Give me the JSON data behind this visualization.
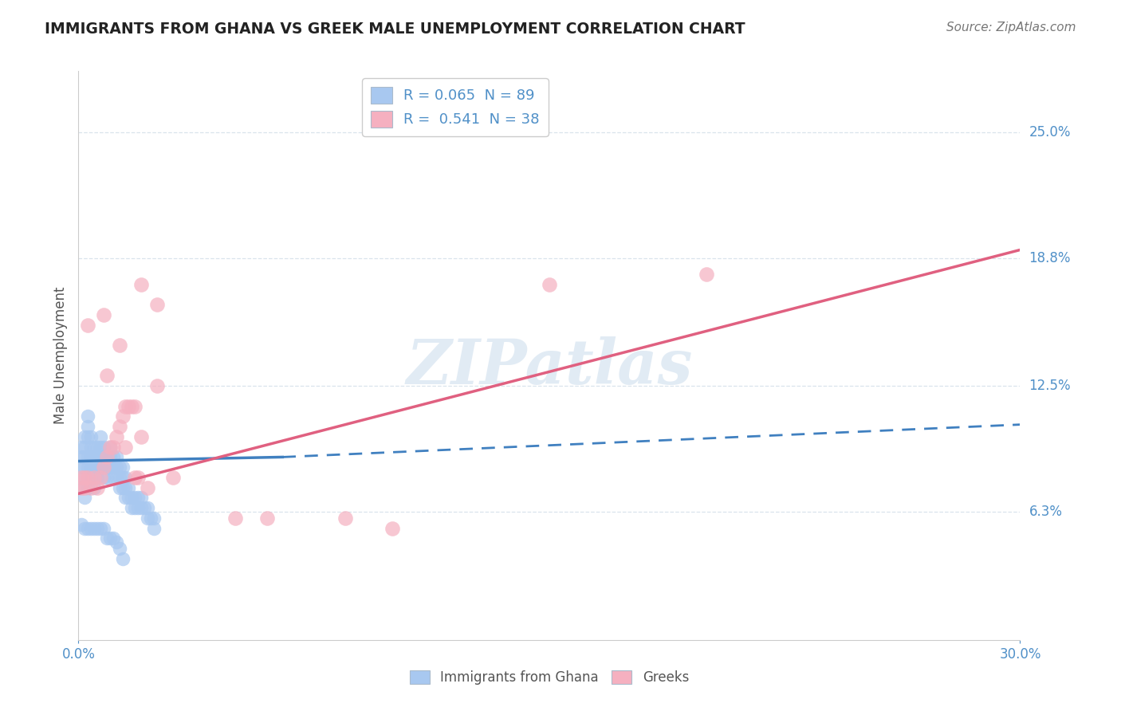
{
  "title": "IMMIGRANTS FROM GHANA VS GREEK MALE UNEMPLOYMENT CORRELATION CHART",
  "source": "Source: ZipAtlas.com",
  "ylabel": "Male Unemployment",
  "watermark": "ZIPatlas",
  "xlim": [
    0.0,
    0.3
  ],
  "ylim": [
    0.0,
    0.28
  ],
  "y_tick_labels": [
    "6.3%",
    "12.5%",
    "18.8%",
    "25.0%"
  ],
  "y_tick_vals": [
    0.063,
    0.125,
    0.188,
    0.25
  ],
  "legend_entries": [
    {
      "label": "R = 0.065  N = 89",
      "color": "#a8c8f0"
    },
    {
      "label": "R =  0.541  N = 38",
      "color": "#f5b0c0"
    }
  ],
  "legend_bottom": [
    "Immigrants from Ghana",
    "Greeks"
  ],
  "blue_color": "#a8c8f0",
  "pink_color": "#f5b0c0",
  "blue_line_color": "#4080c0",
  "pink_line_color": "#e06080",
  "grid_color": "#d0dde8",
  "title_color": "#222222",
  "axis_label_color": "#5090c8",
  "background_color": "#ffffff",
  "ghana_scatter": [
    [
      0.001,
      0.075
    ],
    [
      0.001,
      0.085
    ],
    [
      0.001,
      0.09
    ],
    [
      0.001,
      0.095
    ],
    [
      0.002,
      0.07
    ],
    [
      0.002,
      0.08
    ],
    [
      0.002,
      0.085
    ],
    [
      0.002,
      0.09
    ],
    [
      0.002,
      0.095
    ],
    [
      0.002,
      0.1
    ],
    [
      0.003,
      0.075
    ],
    [
      0.003,
      0.085
    ],
    [
      0.003,
      0.09
    ],
    [
      0.003,
      0.1
    ],
    [
      0.003,
      0.105
    ],
    [
      0.003,
      0.11
    ],
    [
      0.004,
      0.08
    ],
    [
      0.004,
      0.085
    ],
    [
      0.004,
      0.09
    ],
    [
      0.004,
      0.095
    ],
    [
      0.004,
      0.1
    ],
    [
      0.005,
      0.075
    ],
    [
      0.005,
      0.08
    ],
    [
      0.005,
      0.085
    ],
    [
      0.005,
      0.09
    ],
    [
      0.005,
      0.095
    ],
    [
      0.006,
      0.08
    ],
    [
      0.006,
      0.085
    ],
    [
      0.006,
      0.09
    ],
    [
      0.006,
      0.095
    ],
    [
      0.007,
      0.085
    ],
    [
      0.007,
      0.09
    ],
    [
      0.007,
      0.095
    ],
    [
      0.007,
      0.1
    ],
    [
      0.008,
      0.08
    ],
    [
      0.008,
      0.085
    ],
    [
      0.008,
      0.09
    ],
    [
      0.008,
      0.095
    ],
    [
      0.009,
      0.08
    ],
    [
      0.009,
      0.085
    ],
    [
      0.009,
      0.09
    ],
    [
      0.01,
      0.085
    ],
    [
      0.01,
      0.09
    ],
    [
      0.01,
      0.095
    ],
    [
      0.011,
      0.08
    ],
    [
      0.011,
      0.085
    ],
    [
      0.011,
      0.09
    ],
    [
      0.012,
      0.08
    ],
    [
      0.012,
      0.085
    ],
    [
      0.012,
      0.09
    ],
    [
      0.013,
      0.075
    ],
    [
      0.013,
      0.08
    ],
    [
      0.013,
      0.085
    ],
    [
      0.014,
      0.075
    ],
    [
      0.014,
      0.08
    ],
    [
      0.014,
      0.085
    ],
    [
      0.015,
      0.07
    ],
    [
      0.015,
      0.075
    ],
    [
      0.015,
      0.08
    ],
    [
      0.016,
      0.07
    ],
    [
      0.016,
      0.075
    ],
    [
      0.017,
      0.065
    ],
    [
      0.017,
      0.07
    ],
    [
      0.018,
      0.065
    ],
    [
      0.018,
      0.07
    ],
    [
      0.019,
      0.065
    ],
    [
      0.019,
      0.07
    ],
    [
      0.02,
      0.065
    ],
    [
      0.02,
      0.07
    ],
    [
      0.021,
      0.065
    ],
    [
      0.022,
      0.06
    ],
    [
      0.022,
      0.065
    ],
    [
      0.023,
      0.06
    ],
    [
      0.024,
      0.055
    ],
    [
      0.024,
      0.06
    ],
    [
      0.001,
      0.057
    ],
    [
      0.002,
      0.055
    ],
    [
      0.003,
      0.055
    ],
    [
      0.004,
      0.055
    ],
    [
      0.005,
      0.055
    ],
    [
      0.006,
      0.055
    ],
    [
      0.007,
      0.055
    ],
    [
      0.008,
      0.055
    ],
    [
      0.009,
      0.05
    ],
    [
      0.01,
      0.05
    ],
    [
      0.011,
      0.05
    ],
    [
      0.012,
      0.048
    ],
    [
      0.013,
      0.045
    ],
    [
      0.014,
      0.04
    ]
  ],
  "greeks_scatter": [
    [
      0.001,
      0.075
    ],
    [
      0.001,
      0.08
    ],
    [
      0.002,
      0.075
    ],
    [
      0.002,
      0.08
    ],
    [
      0.003,
      0.08
    ],
    [
      0.003,
      0.155
    ],
    [
      0.004,
      0.075
    ],
    [
      0.005,
      0.08
    ],
    [
      0.006,
      0.075
    ],
    [
      0.007,
      0.08
    ],
    [
      0.008,
      0.085
    ],
    [
      0.008,
      0.16
    ],
    [
      0.009,
      0.09
    ],
    [
      0.009,
      0.13
    ],
    [
      0.01,
      0.095
    ],
    [
      0.011,
      0.095
    ],
    [
      0.012,
      0.1
    ],
    [
      0.013,
      0.105
    ],
    [
      0.013,
      0.145
    ],
    [
      0.014,
      0.11
    ],
    [
      0.015,
      0.115
    ],
    [
      0.015,
      0.095
    ],
    [
      0.016,
      0.115
    ],
    [
      0.017,
      0.115
    ],
    [
      0.018,
      0.08
    ],
    [
      0.018,
      0.115
    ],
    [
      0.019,
      0.08
    ],
    [
      0.02,
      0.1
    ],
    [
      0.02,
      0.175
    ],
    [
      0.022,
      0.075
    ],
    [
      0.025,
      0.125
    ],
    [
      0.025,
      0.165
    ],
    [
      0.03,
      0.08
    ],
    [
      0.05,
      0.06
    ],
    [
      0.06,
      0.06
    ],
    [
      0.085,
      0.06
    ],
    [
      0.1,
      0.055
    ],
    [
      0.15,
      0.175
    ],
    [
      0.2,
      0.18
    ]
  ],
  "blue_line_solid": {
    "x0": 0.0,
    "y0": 0.088,
    "x1": 0.065,
    "y1": 0.09
  },
  "blue_line_dash": {
    "x0": 0.065,
    "y0": 0.09,
    "x1": 0.3,
    "y1": 0.106
  },
  "pink_line": {
    "x0": 0.0,
    "y0": 0.072,
    "x1": 0.3,
    "y1": 0.192
  }
}
